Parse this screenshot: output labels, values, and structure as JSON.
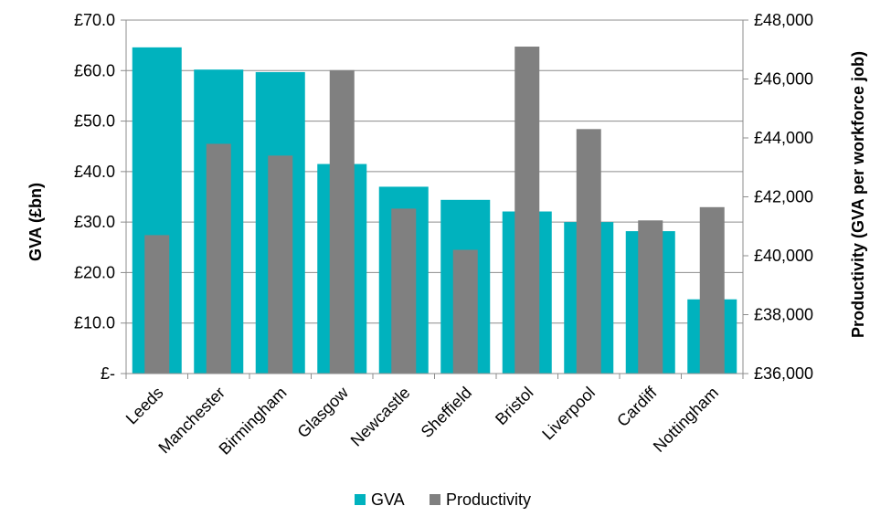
{
  "chart_data": {
    "type": "bar",
    "categories": [
      "Leeds",
      "Manchester",
      "Birmingham",
      "Glasgow",
      "Newcastle",
      "Sheffield",
      "Bristol",
      "Liverpool",
      "Cardiff",
      "Nottingham"
    ],
    "series": [
      {
        "name": "GVA",
        "axis": "left",
        "color": "#00B2BE",
        "values": [
          64.6,
          60.2,
          59.7,
          41.5,
          37.0,
          34.4,
          32.1,
          30.0,
          28.2,
          14.7
        ]
      },
      {
        "name": "Productivity",
        "axis": "right",
        "color": "#808080",
        "values": [
          40700,
          43800,
          43400,
          46300,
          41600,
          40200,
          47100,
          44300,
          41200,
          41650
        ]
      }
    ],
    "ylabel": "GVA (£bn)",
    "y2label": "Productivity (GVA per workforce job)",
    "ylim": [
      0,
      70
    ],
    "y2lim": [
      36000,
      48000
    ],
    "yticks": [
      "£-",
      "£10.0",
      "£20.0",
      "£30.0",
      "£40.0",
      "£50.0",
      "£60.0",
      "£70.0"
    ],
    "y2ticks": [
      "£36,000",
      "£38,000",
      "£40,000",
      "£42,000",
      "£44,000",
      "£46,000",
      "£48,000"
    ],
    "grid": true,
    "legend_position": "bottom"
  }
}
